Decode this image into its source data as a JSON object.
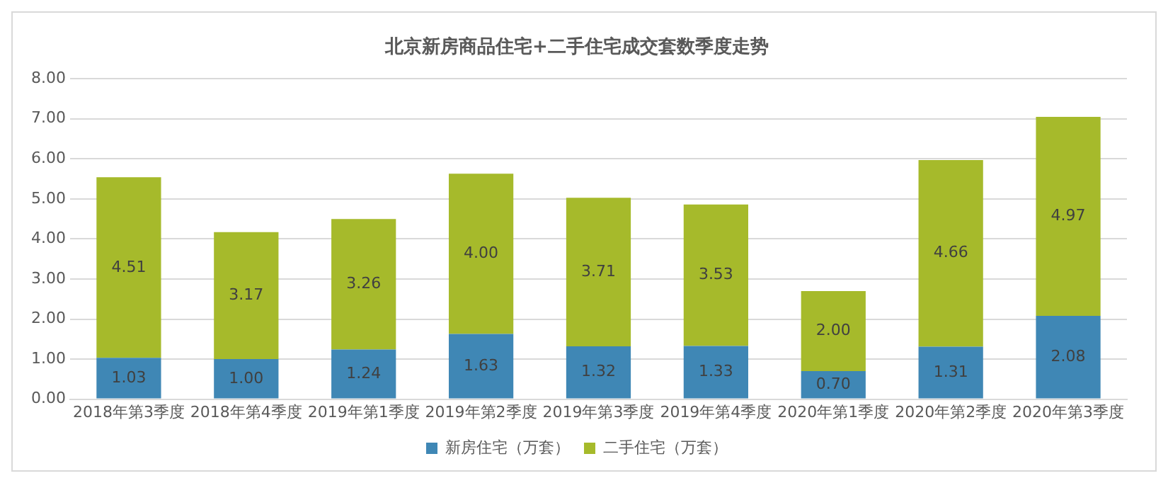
{
  "chart_data": {
    "type": "bar",
    "title": "北京新房商品住宅+二手住宅成交套数季度走势",
    "stacked": true,
    "categories": [
      "2018年第3季度",
      "2018年第4季度",
      "2019年第1季度",
      "2019年第2季度",
      "2019年第3季度",
      "2019年第4季度",
      "2020年第1季度",
      "2020年第2季度",
      "2020年第3季度"
    ],
    "series": [
      {
        "name": "新房住宅（万套）",
        "color": "#3f87b5",
        "values": [
          1.03,
          1.0,
          1.24,
          1.63,
          1.32,
          1.33,
          0.7,
          1.31,
          2.08
        ],
        "value_labels": [
          "1.03",
          "1.00",
          "1.24",
          "1.63",
          "1.32",
          "1.33",
          "0.70",
          "1.31",
          "2.08"
        ]
      },
      {
        "name": "二手住宅（万套）",
        "color": "#a6ba2b",
        "values": [
          4.51,
          3.17,
          3.26,
          4.0,
          3.71,
          3.53,
          2.0,
          4.66,
          4.97
        ],
        "value_labels": [
          "4.51",
          "3.17",
          "3.26",
          "4.00",
          "3.71",
          "3.53",
          "2.00",
          "4.66",
          "4.97"
        ]
      }
    ],
    "ylim": [
      0,
      8
    ],
    "yticks": [
      {
        "value": 0,
        "label": "0.00"
      },
      {
        "value": 1,
        "label": "1.00"
      },
      {
        "value": 2,
        "label": "2.00"
      },
      {
        "value": 3,
        "label": "3.00"
      },
      {
        "value": 4,
        "label": "4.00"
      },
      {
        "value": 5,
        "label": "5.00"
      },
      {
        "value": 6,
        "label": "6.00"
      },
      {
        "value": 7,
        "label": "7.00"
      },
      {
        "value": 8,
        "label": "8.00"
      }
    ],
    "grid": "y",
    "legend": "bottom"
  }
}
